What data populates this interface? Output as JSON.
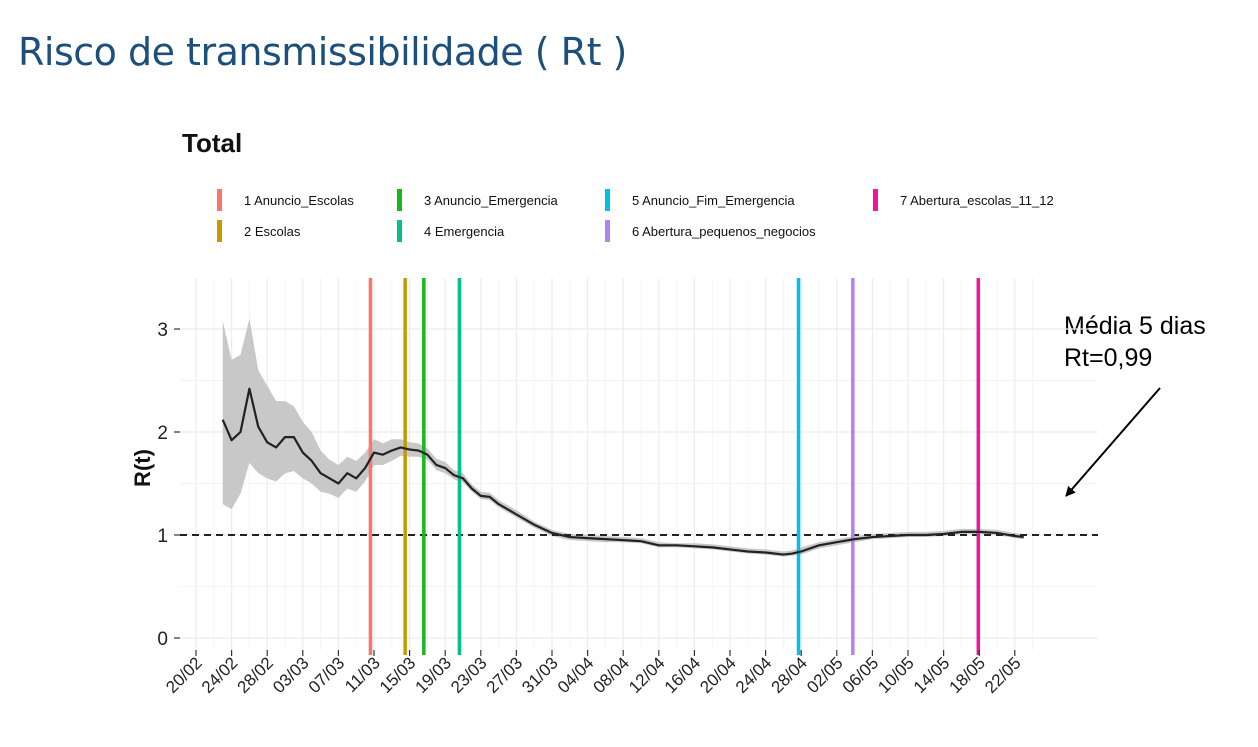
{
  "page": {
    "title": "Risco de transmissibilidade ( Rt )"
  },
  "annotation": {
    "line1": "Média 5 dias",
    "line2": "Rt=0,99"
  },
  "colors": {
    "title": "#1d4f7c",
    "line": "#222222",
    "ribbon": "#c2c2c2",
    "reference": "#222222",
    "grid": "#ececec"
  },
  "chart_data": {
    "type": "line",
    "title": "Total",
    "xlabel": "",
    "ylabel": "R(t)",
    "ylim": [
      -0.1,
      3.45
    ],
    "yticks": [
      0,
      1,
      2,
      3
    ],
    "start_day_label": "20/02",
    "x_tick_labels": [
      "20/02",
      "24/02",
      "28/02",
      "03/03",
      "07/03",
      "11/03",
      "15/03",
      "19/03",
      "23/03",
      "27/03",
      "31/03",
      "04/04",
      "08/04",
      "12/04",
      "16/04",
      "20/04",
      "24/04",
      "28/04",
      "02/05",
      "06/05",
      "10/05",
      "14/05",
      "18/05",
      "22/05"
    ],
    "x_tick_days": [
      0,
      4,
      8,
      12,
      16,
      20,
      24,
      28,
      32,
      36,
      40,
      44,
      48,
      52,
      56,
      60,
      64,
      68,
      72,
      76,
      80,
      84,
      88,
      92
    ],
    "reference_line": 1,
    "series": [
      {
        "name": "R(t)",
        "days": [
          3,
          4,
          5,
          6,
          7,
          8,
          9,
          10,
          11,
          12,
          13,
          14,
          15,
          16,
          17,
          18,
          19,
          20,
          21,
          22,
          23,
          24,
          25,
          26,
          27,
          28,
          29,
          30,
          31,
          32,
          33,
          34,
          36,
          38,
          40,
          42,
          44,
          46,
          48,
          50,
          52,
          54,
          56,
          58,
          60,
          62,
          64,
          66,
          67,
          68,
          70,
          72,
          74,
          76,
          78,
          80,
          82,
          84,
          86,
          88,
          90,
          92,
          93
        ],
        "values": [
          2.12,
          1.92,
          2.0,
          2.42,
          2.05,
          1.9,
          1.85,
          1.95,
          1.95,
          1.8,
          1.72,
          1.6,
          1.55,
          1.5,
          1.6,
          1.55,
          1.65,
          1.8,
          1.78,
          1.82,
          1.85,
          1.83,
          1.82,
          1.78,
          1.68,
          1.65,
          1.58,
          1.55,
          1.45,
          1.38,
          1.37,
          1.3,
          1.2,
          1.1,
          1.02,
          0.98,
          0.97,
          0.96,
          0.95,
          0.94,
          0.9,
          0.9,
          0.89,
          0.88,
          0.86,
          0.84,
          0.83,
          0.81,
          0.82,
          0.84,
          0.9,
          0.93,
          0.96,
          0.98,
          0.99,
          1.0,
          1.0,
          1.01,
          1.03,
          1.03,
          1.02,
          0.99,
          0.98
        ],
        "lower": [
          1.3,
          1.25,
          1.4,
          1.7,
          1.6,
          1.55,
          1.52,
          1.6,
          1.62,
          1.55,
          1.5,
          1.42,
          1.4,
          1.36,
          1.45,
          1.42,
          1.52,
          1.68,
          1.68,
          1.72,
          1.77,
          1.76,
          1.76,
          1.73,
          1.63,
          1.6,
          1.54,
          1.51,
          1.42,
          1.35,
          1.34,
          1.27,
          1.17,
          1.07,
          0.99,
          0.95,
          0.94,
          0.93,
          0.93,
          0.92,
          0.88,
          0.88,
          0.87,
          0.86,
          0.84,
          0.82,
          0.81,
          0.79,
          0.8,
          0.81,
          0.87,
          0.9,
          0.93,
          0.96,
          0.97,
          0.98,
          0.98,
          0.99,
          1.01,
          1.01,
          1.0,
          0.97,
          0.96
        ],
        "upper": [
          3.08,
          2.7,
          2.75,
          3.1,
          2.6,
          2.45,
          2.3,
          2.3,
          2.25,
          2.1,
          2.0,
          1.82,
          1.73,
          1.68,
          1.76,
          1.72,
          1.8,
          1.93,
          1.89,
          1.93,
          1.93,
          1.9,
          1.89,
          1.84,
          1.74,
          1.71,
          1.63,
          1.6,
          1.49,
          1.42,
          1.41,
          1.34,
          1.24,
          1.13,
          1.05,
          1.01,
          1.0,
          0.99,
          0.98,
          0.97,
          0.93,
          0.92,
          0.92,
          0.91,
          0.89,
          0.87,
          0.86,
          0.84,
          0.85,
          0.88,
          0.93,
          0.96,
          0.99,
          1.01,
          1.02,
          1.03,
          1.03,
          1.04,
          1.06,
          1.06,
          1.05,
          1.02,
          1.01
        ]
      }
    ],
    "events": [
      {
        "label": "1 Anuncio_Escolas",
        "day": 19.6,
        "color": "#f8766d"
      },
      {
        "label": "2 Escolas",
        "day": 23.5,
        "color": "#c49a00"
      },
      {
        "label": "3 Anuncio_Emergencia",
        "day": 25.6,
        "color": "#16b81b"
      },
      {
        "label": "4 Emergencia",
        "day": 29.6,
        "color": "#00c08b"
      },
      {
        "label": "5 Anuncio_Fim_Emergencia",
        "day": 67.7,
        "color": "#00bfe8"
      },
      {
        "label": "6 Abertura_pequenos_negocios",
        "day": 73.8,
        "color": "#b283f0"
      },
      {
        "label": "7 Abertura_escolas_11_12",
        "day": 87.9,
        "color": "#f0169c"
      }
    ]
  }
}
